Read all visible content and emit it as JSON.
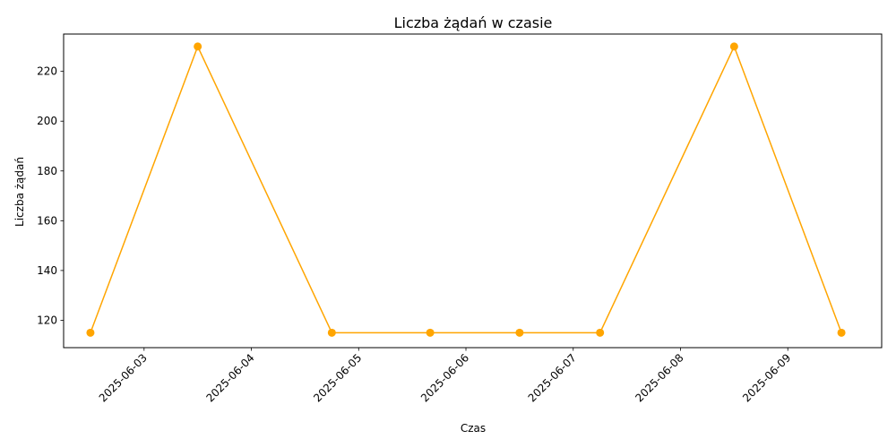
{
  "chart_data": {
    "type": "line",
    "title": "Liczba żądań w czasie",
    "xlabel": "Czas",
    "ylabel": "Liczba żądań",
    "x_tick_labels": [
      "2025-06-03",
      "2025-06-04",
      "2025-06-05",
      "2025-06-06",
      "2025-06-07",
      "2025-06-08",
      "2025-06-09"
    ],
    "x_ticks": [
      "2025-06-03T00:00",
      "2025-06-04T00:00",
      "2025-06-05T00:00",
      "2025-06-06T00:00",
      "2025-06-07T00:00",
      "2025-06-08T00:00",
      "2025-06-09T00:00"
    ],
    "y_ticks": [
      120,
      140,
      160,
      180,
      200,
      220
    ],
    "xlim": [
      "2025-06-02T06:00",
      "2025-06-09T21:00"
    ],
    "ylim": [
      109,
      235
    ],
    "grid": false,
    "series": [
      {
        "color": "#ffa500",
        "marker": "circle",
        "points": [
          {
            "x": "2025-06-02T12:00",
            "y": 115
          },
          {
            "x": "2025-06-03T12:00",
            "y": 230
          },
          {
            "x": "2025-06-04T18:00",
            "y": 115
          },
          {
            "x": "2025-06-05T16:00",
            "y": 115
          },
          {
            "x": "2025-06-06T12:00",
            "y": 115
          },
          {
            "x": "2025-06-07T06:00",
            "y": 115
          },
          {
            "x": "2025-06-08T12:00",
            "y": 230
          },
          {
            "x": "2025-06-09T12:00",
            "y": 115
          }
        ]
      }
    ]
  }
}
